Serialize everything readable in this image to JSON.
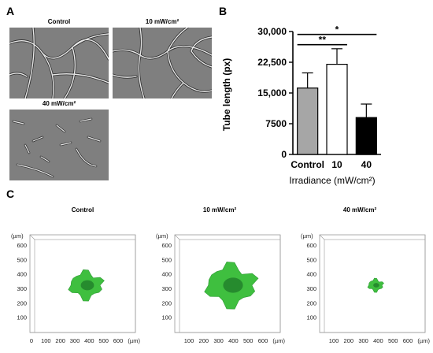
{
  "panel_labels": {
    "a": "A",
    "b": "B",
    "c": "C"
  },
  "panel_a": {
    "images": [
      {
        "title": "Control"
      },
      {
        "title": "10 mW/cm²"
      },
      {
        "title": "40 mW/cm²"
      }
    ],
    "colors": {
      "background": "#7f7f7f",
      "tube": "#e6e6e6",
      "tube_shadow": "#2b2b2b"
    }
  },
  "chart_data": {
    "type": "bar",
    "categories": [
      "Control",
      "10",
      "40"
    ],
    "values": [
      16200,
      22000,
      9000
    ],
    "errors": [
      3700,
      3800,
      3300
    ],
    "bar_colors": [
      "#a6a6a6",
      "#ffffff",
      "#000000"
    ],
    "title": "",
    "xlabel": "Irradiance (mW/cm²)",
    "ylabel": "Tube length (px)",
    "ylim": [
      0,
      30000
    ],
    "yticks": [
      0,
      7500,
      15000,
      22500,
      30000
    ],
    "ytick_labels": [
      "0",
      "7500",
      "15,000",
      "22,500",
      "30,000"
    ],
    "grid": false,
    "significance": [
      {
        "from": "Control",
        "to": "40",
        "label": "*"
      },
      {
        "from": "Control",
        "to": "10",
        "label": "**"
      }
    ]
  },
  "panel_c": {
    "panels": [
      {
        "title": "Control",
        "x_ticks": [
          "0",
          "100",
          "200",
          "300",
          "400",
          "500",
          "600"
        ],
        "y_ticks": [
          "600",
          "500",
          "400",
          "300",
          "200",
          "100"
        ],
        "unit": "(µm)",
        "blob_size": 1.0
      },
      {
        "title": "10 mW/cm²",
        "x_ticks": [
          "100",
          "200",
          "300",
          "400",
          "500",
          "600"
        ],
        "y_ticks": [
          "600",
          "500",
          "400",
          "300",
          "200",
          "100"
        ],
        "unit": "(µm)",
        "blob_size": 1.5
      },
      {
        "title": "40 mW/cm²",
        "x_ticks": [
          "100",
          "200",
          "300",
          "400",
          "500",
          "600"
        ],
        "y_ticks": [
          "600",
          "500",
          "400",
          "300",
          "200",
          "100"
        ],
        "unit": "(µm)",
        "blob_size": 0.45
      }
    ],
    "colors": {
      "spheroid": "#3fbf3f",
      "spheroid_core": "#1f7a2a",
      "frame": "#9a9a9a"
    }
  }
}
